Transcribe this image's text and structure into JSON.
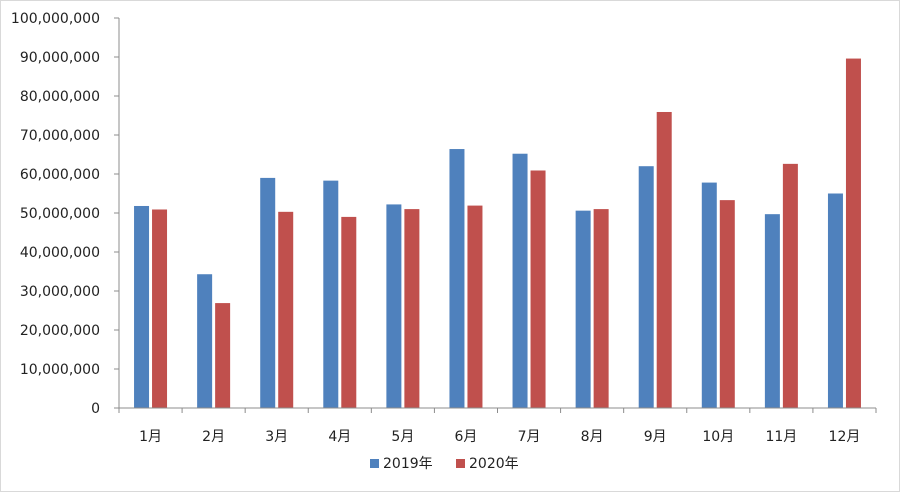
{
  "chart_data": {
    "type": "bar",
    "categories": [
      "1月",
      "2月",
      "3月",
      "4月",
      "5月",
      "6月",
      "7月",
      "8月",
      "9月",
      "10月",
      "11月",
      "12月"
    ],
    "series": [
      {
        "name": "2019年",
        "color": "#4f81bd",
        "values": [
          51800000,
          34300000,
          59000000,
          58300000,
          52200000,
          66400000,
          65200000,
          50600000,
          62000000,
          57800000,
          49700000,
          55000000
        ]
      },
      {
        "name": "2020年",
        "color": "#c0504d",
        "values": [
          50900000,
          26900000,
          50300000,
          49000000,
          51000000,
          51900000,
          60900000,
          51000000,
          75900000,
          53300000,
          62600000,
          89600000
        ]
      }
    ],
    "ylim": [
      0,
      100000000
    ],
    "ytick_labels": [
      "0",
      "10,000,000",
      "20,000,000",
      "30,000,000",
      "40,000,000",
      "50,000,000",
      "60,000,000",
      "70,000,000",
      "80,000,000",
      "90,000,000",
      "100,000,000"
    ],
    "grid": false,
    "legend_position": "bottom"
  }
}
